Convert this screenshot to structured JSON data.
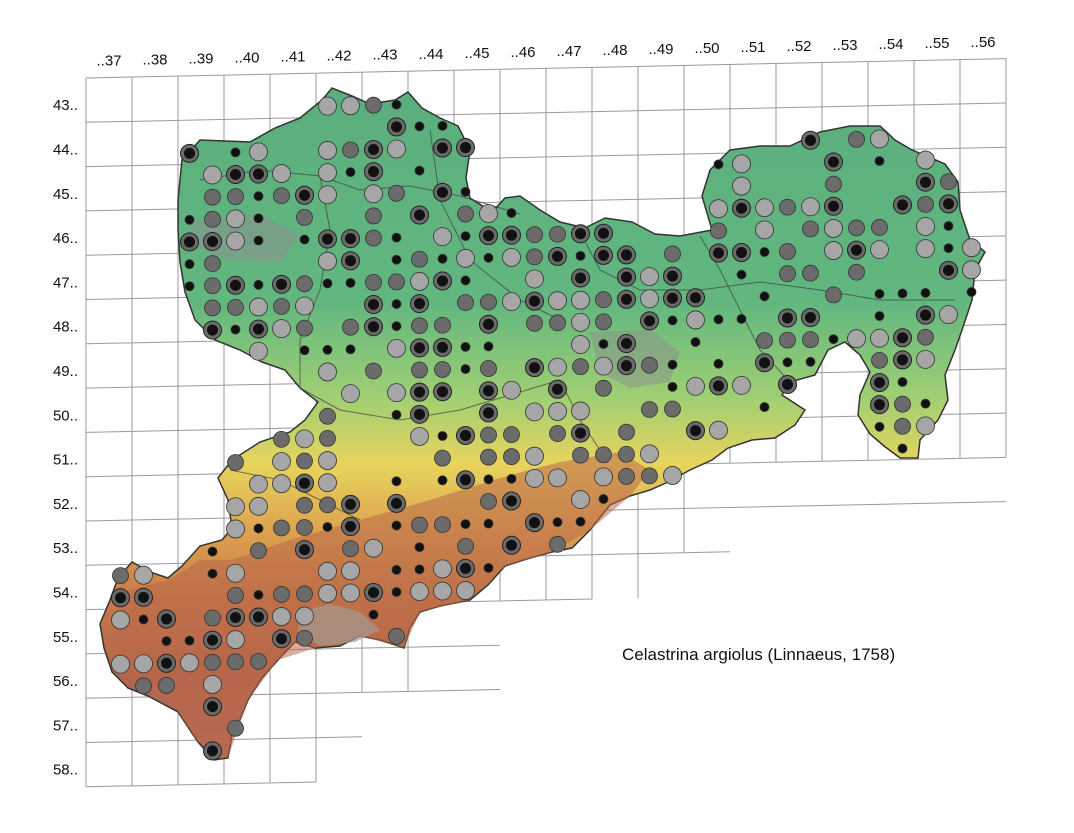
{
  "map": {
    "species": "Celastrina argiolus (Linnaeus, 1758)",
    "column_labels": [
      "..37",
      "..38",
      "..39",
      "..40",
      "..41",
      "..42",
      "..43",
      "..44",
      "..45",
      "..46",
      "..47",
      "..48",
      "..49",
      "..50",
      "..51",
      "..52",
      "..53",
      "..54",
      "..55",
      "..56"
    ],
    "row_labels": [
      "43..",
      "44..",
      "45..",
      "46..",
      "47..",
      "48..",
      "49..",
      "50..",
      "51..",
      "52..",
      "53..",
      "54..",
      "55..",
      "56..",
      "57..",
      "58.."
    ],
    "colors": {
      "grid_line": "#9a9a9a",
      "region_border": "#3a3a3a",
      "lowland": "#5fb683",
      "midland": "#9ccf72",
      "upland": "#e7d25c",
      "highland": "#d48a45",
      "mountain": "#b4624a",
      "summit": "#9c8c82",
      "marker_black": "#111111",
      "marker_dark_gray": "#6b6b6b",
      "marker_light_gray": "#a6a6a6"
    }
  }
}
